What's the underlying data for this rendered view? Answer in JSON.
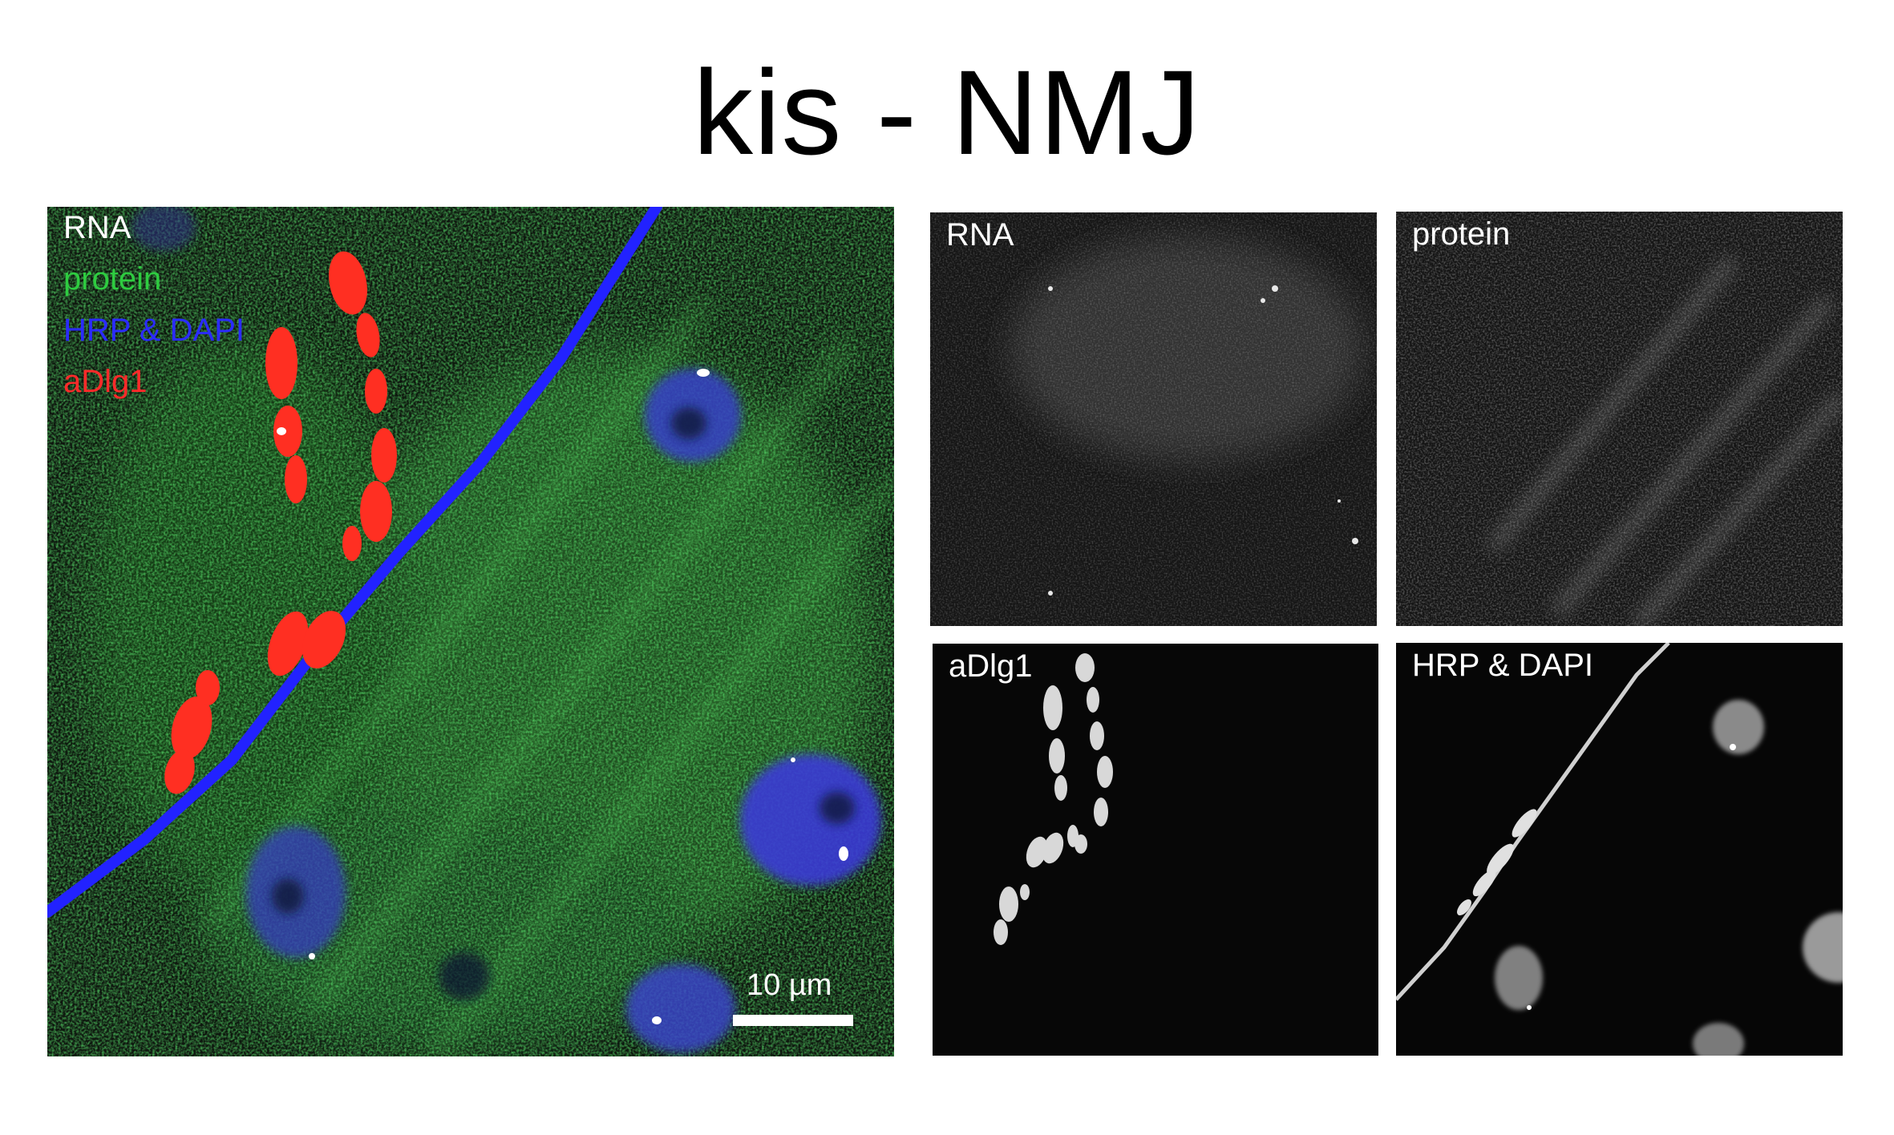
{
  "figure": {
    "title": "kis - NMJ"
  },
  "merged_panel": {
    "legend": [
      {
        "label": "RNA",
        "color": "#ffffff"
      },
      {
        "label": "protein",
        "color": "#2ecc40"
      },
      {
        "label": "HRP & DAPI",
        "color": "#2b2bff"
      },
      {
        "label": "aDlg1",
        "color": "#ff2a2a"
      }
    ],
    "scale_bar_label": "10 µm"
  },
  "channel_panels": [
    {
      "label": "RNA"
    },
    {
      "label": "protein"
    },
    {
      "label": "aDlg1"
    },
    {
      "label": "HRP & DAPI"
    }
  ]
}
